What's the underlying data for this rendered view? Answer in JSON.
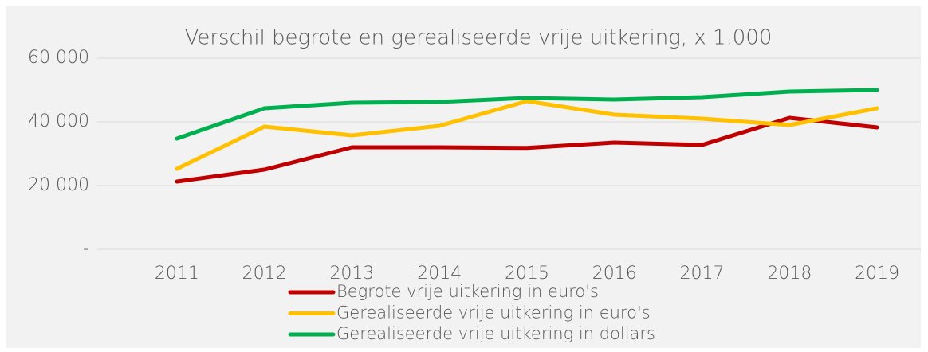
{
  "chart_data": {
    "type": "line",
    "title": "Verschil begrote en gerealiseerde vrije uitkering, x 1.000",
    "categories": [
      "2011",
      "2012",
      "2013",
      "2014",
      "2015",
      "2016",
      "2017",
      "2018",
      "2019"
    ],
    "series": [
      {
        "name": "Begrote vrije uitkering in euro's",
        "color": "#c00000",
        "values": [
          21250,
          25000,
          32000,
          32000,
          31800,
          33500,
          32750,
          41250,
          38250
        ]
      },
      {
        "name": "Gerealiseerde vrije uitkering in euro's",
        "color": "#ffc000",
        "values": [
          25250,
          38500,
          35750,
          38750,
          46500,
          42250,
          41000,
          39000,
          44250
        ]
      },
      {
        "name": "Gerealiseerde vrije uitkering in dollars",
        "color": "#00b050",
        "values": [
          34750,
          44250,
          46000,
          46250,
          47500,
          47000,
          47750,
          49500,
          50000
        ]
      }
    ],
    "ylim": [
      0,
      60000
    ],
    "yticks": [
      {
        "value": 0,
        "label": "-"
      },
      {
        "value": 20000,
        "label": "20.000"
      },
      {
        "value": 40000,
        "label": "40.000"
      },
      {
        "value": 60000,
        "label": "60.000"
      }
    ],
    "grid": true,
    "legend": "bottom"
  }
}
